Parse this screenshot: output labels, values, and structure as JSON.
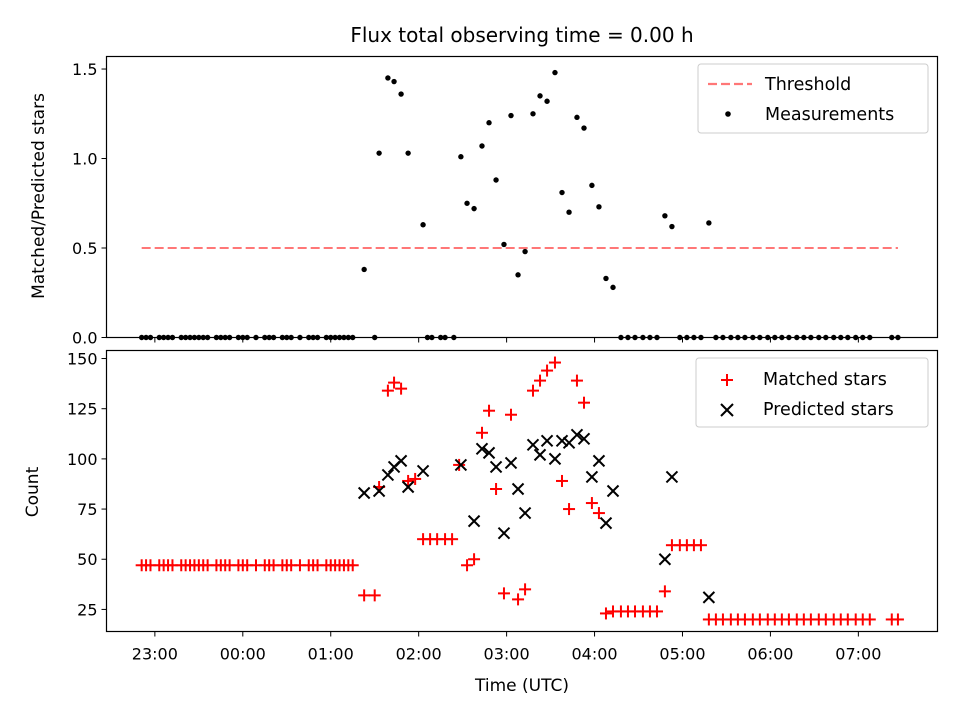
{
  "chart_data": [
    {
      "type": "scatter",
      "title": "Flux total observing time = 0.00 h",
      "xlabel": "",
      "ylabel": "Matched/Predicted stars",
      "xlim_hours": [
        -1.55,
        7.9
      ],
      "ylim": [
        0,
        1.57
      ],
      "yticks": [
        0.0,
        0.5,
        1.0,
        1.5
      ],
      "ytick_labels": [
        "0.0",
        "0.5",
        "1.0",
        "1.5"
      ],
      "xticks_hours": [
        -1,
        0,
        1,
        2,
        3,
        4,
        5,
        6,
        7
      ],
      "grid": false,
      "legend": "top-right",
      "threshold": {
        "name": "Threshold",
        "value": 0.5,
        "x_range_hours": [
          -1.15,
          7.45
        ],
        "color": "#ff7777"
      },
      "series": [
        {
          "name": "Measurements",
          "color": "#000000",
          "x": [
            -1.15,
            -1.1,
            -1.05,
            -0.95,
            -0.9,
            -0.85,
            -0.8,
            -0.7,
            -0.65,
            -0.6,
            -0.55,
            -0.5,
            -0.45,
            -0.4,
            -0.3,
            -0.25,
            -0.2,
            -0.15,
            -0.05,
            0.0,
            0.05,
            0.15,
            0.25,
            0.3,
            0.35,
            0.45,
            0.5,
            0.55,
            0.65,
            0.75,
            0.8,
            0.85,
            0.95,
            1.0,
            1.05,
            1.1,
            1.15,
            1.2,
            1.25,
            1.38,
            1.5,
            1.55,
            1.65,
            1.72,
            1.8,
            1.88,
            2.05,
            2.1,
            2.15,
            2.25,
            2.3,
            2.4,
            2.48,
            2.55,
            2.63,
            2.72,
            2.8,
            2.88,
            2.97,
            3.05,
            3.13,
            3.21,
            3.3,
            3.38,
            3.46,
            3.55,
            3.63,
            3.71,
            3.8,
            3.88,
            3.97,
            4.05,
            4.13,
            4.21,
            4.3,
            4.38,
            4.46,
            4.55,
            4.63,
            4.71,
            4.8,
            4.88,
            4.97,
            5.05,
            5.13,
            5.21,
            5.3,
            5.38,
            5.46,
            5.55,
            5.63,
            5.71,
            5.8,
            5.88,
            5.97,
            6.05,
            6.13,
            6.21,
            6.3,
            6.38,
            6.46,
            6.55,
            6.63,
            6.72,
            6.8,
            6.88,
            6.97,
            7.05,
            7.13,
            7.38,
            7.45
          ],
          "y": [
            0,
            0,
            0,
            0,
            0,
            0,
            0,
            0,
            0,
            0,
            0,
            0,
            0,
            0,
            0,
            0,
            0,
            0,
            0,
            0,
            0,
            0,
            0,
            0,
            0,
            0,
            0,
            0,
            0,
            0,
            0,
            0,
            0,
            0,
            0,
            0,
            0,
            0,
            0,
            0.38,
            0,
            1.03,
            1.45,
            1.43,
            1.36,
            1.03,
            0.63,
            0,
            0,
            0,
            0,
            0,
            1.01,
            0.75,
            0.72,
            1.07,
            1.2,
            0.88,
            0.52,
            1.24,
            0.35,
            0.48,
            1.25,
            1.35,
            1.32,
            1.48,
            0.81,
            0.7,
            1.23,
            1.17,
            0.85,
            0.73,
            0.33,
            0.28,
            0,
            0,
            0,
            0,
            0,
            0,
            0.68,
            0.62,
            0,
            0,
            0,
            0,
            0.64,
            0,
            0,
            0,
            0,
            0,
            0,
            0,
            0,
            0,
            0,
            0,
            0,
            0,
            0,
            0,
            0,
            0,
            0,
            0,
            0,
            0,
            0,
            0,
            0
          ]
        }
      ]
    },
    {
      "type": "scatter",
      "title": "",
      "xlabel": "Time (UTC)",
      "ylabel": "Count",
      "xlim_hours": [
        -1.55,
        7.9
      ],
      "ylim": [
        14,
        154
      ],
      "yticks": [
        25,
        50,
        75,
        100,
        125,
        150
      ],
      "ytick_labels": [
        "25",
        "50",
        "75",
        "100",
        "125",
        "150"
      ],
      "xticks_hours": [
        -1,
        0,
        1,
        2,
        3,
        4,
        5,
        6,
        7
      ],
      "xtick_labels": [
        "23:00",
        "00:00",
        "01:00",
        "02:00",
        "03:00",
        "04:00",
        "05:00",
        "06:00",
        "07:00"
      ],
      "grid": false,
      "legend": "top-right",
      "series": [
        {
          "name": "Matched stars",
          "marker": "+",
          "color": "#ff0000",
          "x": [
            -1.15,
            -1.1,
            -1.05,
            -0.95,
            -0.9,
            -0.85,
            -0.8,
            -0.7,
            -0.65,
            -0.6,
            -0.55,
            -0.5,
            -0.45,
            -0.4,
            -0.3,
            -0.25,
            -0.2,
            -0.15,
            -0.05,
            0.0,
            0.05,
            0.15,
            0.25,
            0.3,
            0.35,
            0.45,
            0.5,
            0.55,
            0.65,
            0.75,
            0.8,
            0.85,
            0.95,
            1.0,
            1.05,
            1.1,
            1.15,
            1.2,
            1.25,
            1.38,
            1.5,
            1.55,
            1.65,
            1.72,
            1.8,
            1.88,
            1.96,
            2.05,
            2.13,
            2.21,
            2.3,
            2.38,
            2.46,
            2.55,
            2.63,
            2.72,
            2.8,
            2.88,
            2.97,
            3.05,
            3.13,
            3.21,
            3.3,
            3.38,
            3.46,
            3.55,
            3.63,
            3.71,
            3.8,
            3.88,
            3.97,
            4.05,
            4.13,
            4.21,
            4.3,
            4.38,
            4.46,
            4.55,
            4.63,
            4.71,
            4.8,
            4.88,
            4.97,
            5.05,
            5.13,
            5.21,
            5.3,
            5.38,
            5.46,
            5.55,
            5.63,
            5.71,
            5.8,
            5.88,
            5.97,
            6.05,
            6.13,
            6.21,
            6.3,
            6.38,
            6.46,
            6.55,
            6.63,
            6.72,
            6.8,
            6.88,
            6.97,
            7.05,
            7.13,
            7.38,
            7.45
          ],
          "y": [
            47,
            47,
            47,
            47,
            47,
            47,
            47,
            47,
            47,
            47,
            47,
            47,
            47,
            47,
            47,
            47,
            47,
            47,
            47,
            47,
            47,
            47,
            47,
            47,
            47,
            47,
            47,
            47,
            47,
            47,
            47,
            47,
            47,
            47,
            47,
            47,
            47,
            47,
            47,
            32,
            32,
            86,
            134,
            138,
            135,
            89,
            90,
            60,
            60,
            60,
            60,
            60,
            97,
            47,
            50,
            113,
            124,
            85,
            33,
            122,
            30,
            35,
            134,
            139,
            144,
            148,
            89,
            75,
            139,
            128,
            78,
            73,
            23,
            24,
            24,
            24,
            24,
            24,
            24,
            24,
            34,
            57,
            57,
            57,
            57,
            57,
            20,
            20,
            20,
            20,
            20,
            20,
            20,
            20,
            20,
            20,
            20,
            20,
            20,
            20,
            20,
            20,
            20,
            20,
            20,
            20,
            20,
            20,
            20,
            20,
            20
          ]
        },
        {
          "name": "Predicted stars",
          "marker": "x",
          "color": "#000000",
          "x": [
            1.38,
            1.55,
            1.65,
            1.72,
            1.8,
            1.88,
            2.05,
            2.48,
            2.63,
            2.72,
            2.8,
            2.88,
            2.97,
            3.05,
            3.13,
            3.21,
            3.3,
            3.38,
            3.46,
            3.55,
            3.63,
            3.71,
            3.8,
            3.88,
            3.97,
            4.05,
            4.13,
            4.21,
            4.8,
            4.88,
            5.3
          ],
          "y": [
            83,
            84,
            92,
            96,
            99,
            86,
            94,
            97,
            69,
            105,
            103,
            96,
            63,
            98,
            85,
            73,
            107,
            102,
            109,
            100,
            109,
            108,
            112,
            110,
            91,
            99,
            68,
            84,
            50,
            91,
            31
          ]
        }
      ]
    }
  ]
}
